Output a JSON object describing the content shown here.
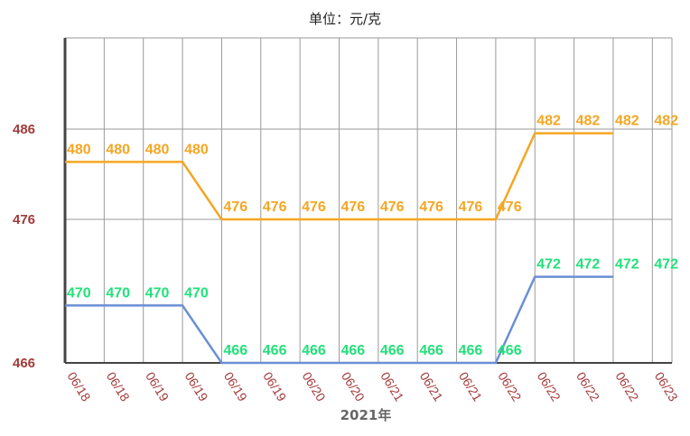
{
  "unit_label_prefix": "单位：",
  "unit_label_value": "元/克",
  "chart_data": {
    "type": "line",
    "title": "",
    "xlabel": "2021年",
    "ylabel": "单位：元/克",
    "categories": [
      "06/18",
      "06/18",
      "06/19",
      "06/19",
      "06/19",
      "06/19",
      "06/20",
      "06/20",
      "06/21",
      "06/21",
      "06/21",
      "06/22",
      "06/22",
      "06/22",
      "06/22",
      "06/23"
    ],
    "series": [
      {
        "values": [
          480,
          480,
          480,
          480,
          476,
          476,
          476,
          476,
          476,
          476,
          476,
          476,
          482,
          482,
          482,
          482
        ],
        "color": "#f5a623",
        "label_color": "#f5a623"
      },
      {
        "values": [
          470,
          470,
          470,
          470,
          466,
          466,
          466,
          466,
          466,
          466,
          466,
          466,
          472,
          472,
          472,
          472
        ],
        "color": "#6b8fd6",
        "label_color": "#22e07a"
      }
    ],
    "yticks": [
      466,
      476,
      486
    ],
    "tick_color": "#a33a3a",
    "grid": true,
    "legend": "none"
  }
}
